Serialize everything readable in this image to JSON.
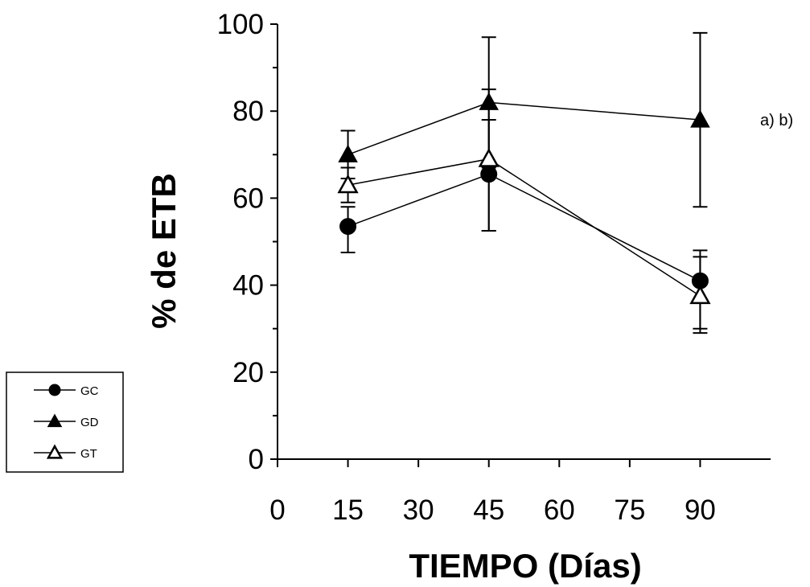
{
  "chart_data": {
    "type": "line",
    "title": "",
    "xlabel": "TIEMPO (Días)",
    "ylabel": "% de ETB",
    "xlim": [
      0,
      105
    ],
    "ylim": [
      0,
      100
    ],
    "x_ticks": [
      0,
      15,
      30,
      45,
      60,
      75,
      90
    ],
    "y_ticks": [
      0,
      20,
      40,
      60,
      80,
      100
    ],
    "grid": false,
    "legend_position": "left-bottom, outside plot",
    "annotation": {
      "text": "a) b)",
      "x": 90,
      "y": 78
    },
    "series": [
      {
        "name": "GC",
        "marker": "filled-circle",
        "x": [
          15,
          45,
          90
        ],
        "y": [
          53.5,
          65.5,
          41
        ],
        "err_low": [
          47.5,
          52.5,
          30
        ],
        "err_high": [
          58,
          78,
          46.5
        ]
      },
      {
        "name": "GD",
        "marker": "filled-triangle",
        "x": [
          15,
          45,
          90
        ],
        "y": [
          70,
          82,
          78
        ],
        "err_low": [
          64.5,
          67,
          58
        ],
        "err_high": [
          75.5,
          97,
          98
        ]
      },
      {
        "name": "GT",
        "marker": "open-triangle",
        "x": [
          15,
          45,
          90
        ],
        "y": [
          63,
          69,
          37.5
        ],
        "err_low": [
          59,
          52.5,
          29
        ],
        "err_high": [
          67,
          85,
          48
        ]
      }
    ]
  }
}
